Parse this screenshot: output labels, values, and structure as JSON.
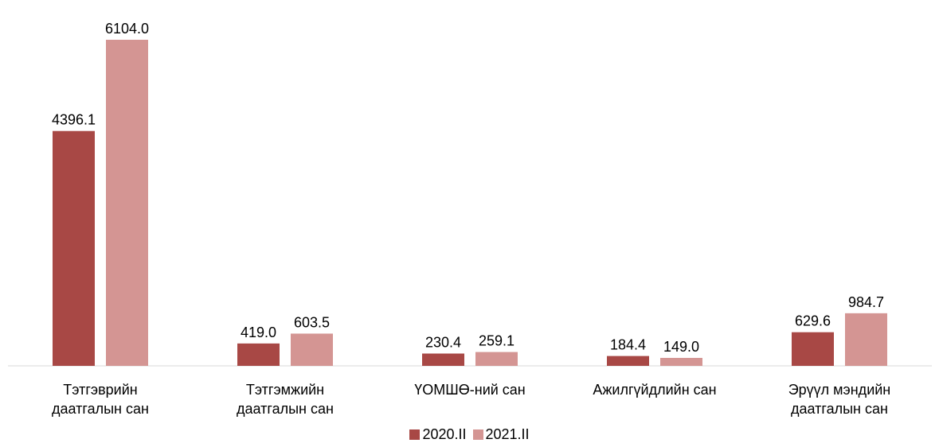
{
  "chart_data": {
    "type": "bar",
    "categories": [
      "Тэтгэврийн даатгалын сан",
      "Тэтгэмжийн даатгалын сан",
      "ҮОМШӨ-ний сан",
      "Ажилгүйдлийн сан",
      "Эрүүл мэндийн даатгалын сан"
    ],
    "series": [
      {
        "name": "2020.II",
        "color": "#a84845",
        "values": [
          4396.1,
          419.0,
          230.4,
          184.4,
          629.6
        ],
        "value_labels": [
          "4396.1",
          "419.0",
          "230.4",
          "184.4",
          "629.6"
        ]
      },
      {
        "name": "2021.II",
        "color": "#d49593",
        "values": [
          6104.0,
          603.5,
          259.1,
          149.0,
          984.7
        ],
        "value_labels": [
          "6104.0",
          "603.5",
          "259.1",
          "149.0",
          "984.7"
        ]
      }
    ],
    "legend": "bottom"
  }
}
